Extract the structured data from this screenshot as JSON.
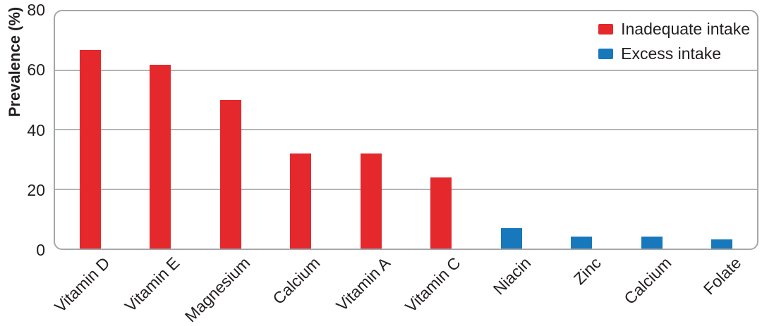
{
  "chart_data": {
    "type": "bar",
    "title": "",
    "xlabel": "",
    "ylabel": "Prevalence (%)",
    "ylim": [
      0,
      80
    ],
    "yticks": [
      0,
      20,
      40,
      60,
      80
    ],
    "grid": true,
    "legend_position": "top-right",
    "categories": [
      "Vitamin D",
      "Vitamin E",
      "Magnesium",
      "Calcium",
      "Vitamin A",
      "Vitamin C",
      "Niacin",
      "Zinc",
      "Calcium",
      "Folate"
    ],
    "series": [
      {
        "name": "Inadequate intake",
        "color": "#e4282c",
        "values": [
          67,
          62,
          50,
          32,
          32,
          24,
          null,
          null,
          null,
          null
        ]
      },
      {
        "name": "Excess intake",
        "color": "#1878bc",
        "values": [
          null,
          null,
          null,
          null,
          null,
          null,
          7,
          4,
          4,
          3
        ]
      }
    ],
    "style": {
      "frame_color": "#a5a7aa",
      "gridline_color": "#b2b4b6",
      "text_color": "#231f20",
      "background": "#ffffff"
    }
  }
}
